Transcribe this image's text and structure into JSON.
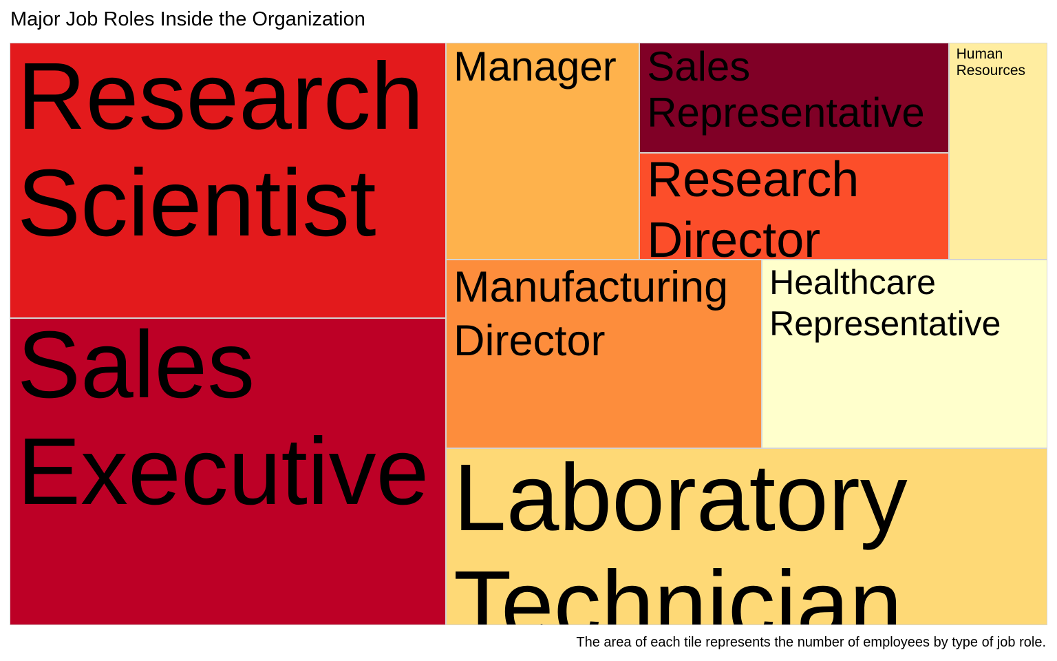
{
  "title": "Major Job Roles Inside the Organization",
  "caption": "The area of each tile represents the number of employees by type of job role.",
  "chart_data": {
    "type": "treemap",
    "value_label": "number of employees",
    "tiles": [
      {
        "label": "Sales Executive",
        "value": 326,
        "color": "#bd0026"
      },
      {
        "label": "Research Scientist",
        "value": 292,
        "color": "#e31a1c"
      },
      {
        "label": "Laboratory Technician",
        "value": 259,
        "color": "#fed976"
      },
      {
        "label": "Manufacturing Director",
        "value": 145,
        "color": "#fd8d3c"
      },
      {
        "label": "Healthcare Representative",
        "value": 131,
        "color": "#ffffcc"
      },
      {
        "label": "Manager",
        "value": 102,
        "color": "#feb24c"
      },
      {
        "label": "Sales Representative",
        "value": 83,
        "color": "#800026"
      },
      {
        "label": "Research Director",
        "value": 80,
        "color": "#fc4e2a"
      },
      {
        "label": "Human Resources",
        "value": 52,
        "color": "#ffeda0"
      }
    ]
  }
}
